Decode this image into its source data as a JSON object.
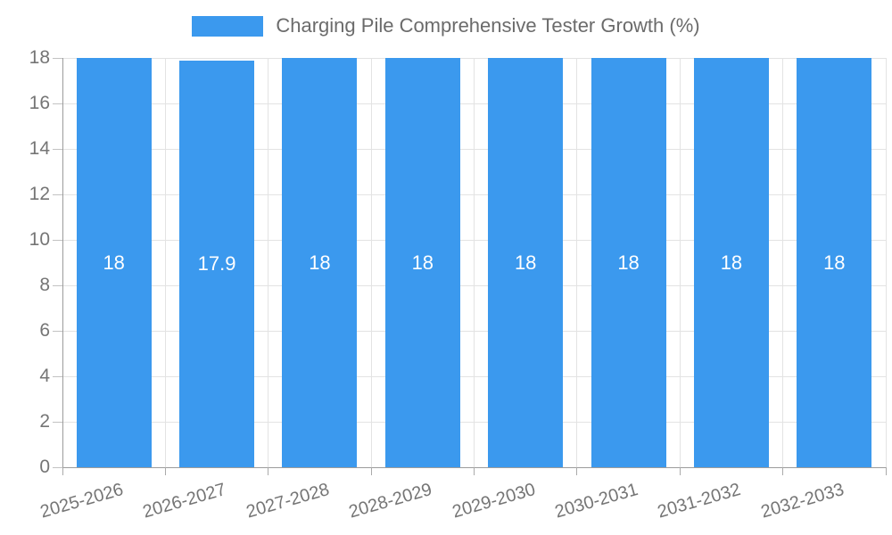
{
  "legend": {
    "label": "Charging Pile Comprehensive Tester Growth (%)",
    "swatch_color": "#3b99ee"
  },
  "chart_data": {
    "type": "bar",
    "title": "Charging Pile Comprehensive Tester Growth (%)",
    "legend_entries": [
      "Charging Pile Comprehensive Tester Growth (%)"
    ],
    "legend_position": "top-center",
    "categories": [
      "2025-2026",
      "2026-2027",
      "2027-2028",
      "2028-2029",
      "2029-2030",
      "2030-2031",
      "2031-2032",
      "2032-2033"
    ],
    "series": [
      {
        "name": "Charging Pile Comprehensive Tester Growth (%)",
        "values": [
          18,
          17.9,
          18,
          18,
          18,
          18,
          18,
          18
        ],
        "value_labels": [
          "18",
          "17.9",
          "18",
          "18",
          "18",
          "18",
          "18",
          "18"
        ]
      }
    ],
    "xlabel": "",
    "ylabel": "",
    "ylim": [
      0,
      18
    ],
    "yticks": [
      0,
      2,
      4,
      6,
      8,
      10,
      12,
      14,
      16,
      18
    ],
    "grid": "on",
    "xtick_rotation_deg": -16,
    "colors": {
      "bar": "#3b99ee",
      "bar_value_label": "#ffffff",
      "axis_text": "#757575",
      "legend_text": "#6b6b6b",
      "gridline": "#e3e3e3",
      "axis_line": "#9c9c9c"
    }
  }
}
